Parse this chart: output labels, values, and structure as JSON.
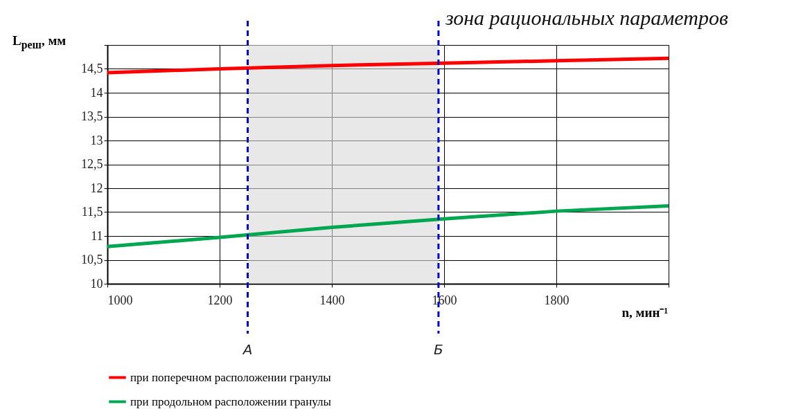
{
  "chart_data": {
    "type": "line",
    "xlabel": "n, мин⁻¹",
    "ylabel": "L$_{реш}$, мм",
    "x": [
      1000,
      1200,
      1400,
      1600,
      1800,
      2000
    ],
    "series": [
      {
        "name": "при поперечном расположении гранулы",
        "color": "#ff0000",
        "values": [
          14.42,
          14.5,
          14.57,
          14.62,
          14.67,
          14.72
        ]
      },
      {
        "name": "при продольном расположении гранулы",
        "color": "#00a650",
        "values": [
          10.78,
          10.97,
          11.18,
          11.36,
          11.52,
          11.63
        ]
      }
    ],
    "xlim": [
      1000,
      2000
    ],
    "xticks": [
      1000,
      1200,
      1400,
      1600,
      1800,
      {
        "value": 2000,
        "label": null
      }
    ],
    "ylim": [
      10,
      15
    ],
    "yticks": [
      10,
      {
        "value": 10.5,
        "label": "10,5"
      },
      11,
      {
        "value": 11.5,
        "label": "11,5"
      },
      12,
      {
        "value": 12.5,
        "label": "12,5"
      },
      13,
      {
        "value": 13.5,
        "label": "13,5"
      },
      14,
      {
        "value": 14.5,
        "label": "14,5"
      },
      {
        "value": 15,
        "label": null
      }
    ],
    "ref_lines": [
      {
        "axis": "x",
        "value": 1250,
        "label": "А",
        "color": "#0000cc",
        "line_style": "dashed"
      },
      {
        "axis": "x",
        "value": 1590,
        "label": "Б",
        "color": "#0000cc",
        "line_style": "dashed"
      }
    ],
    "bands": [
      {
        "axis": "x",
        "from": 1250,
        "to": 1590,
        "label": "зона рациональных параметров",
        "color": "#d9d9d9"
      }
    ],
    "grid": true,
    "legend": "bottom",
    "marker": "none",
    "line_style": "solid"
  }
}
